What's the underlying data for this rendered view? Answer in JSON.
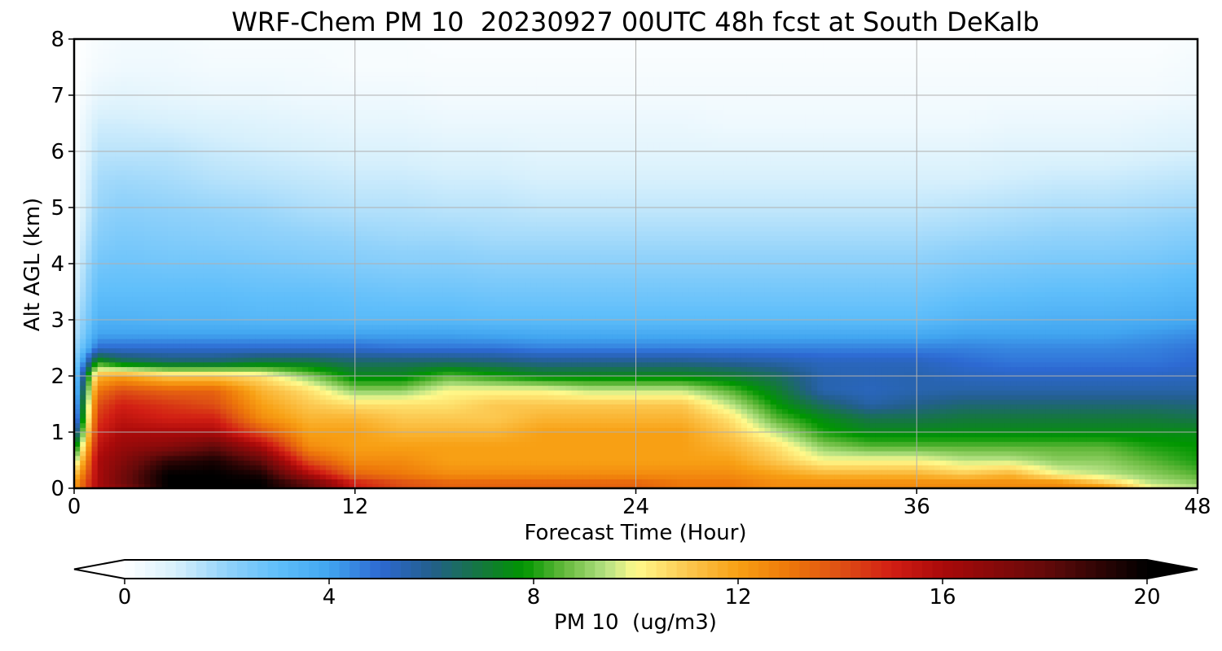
{
  "chart_data": {
    "type": "heatmap",
    "title": "WRF-Chem PM 10  20230927 00UTC 48h fcst at South DeKalb",
    "xlabel": "Forecast Time (Hour)",
    "ylabel": "Alt AGL (km)",
    "xlim": [
      0,
      48
    ],
    "ylim": [
      0,
      8
    ],
    "x_ticks": [
      0,
      12,
      24,
      36,
      48
    ],
    "y_ticks": [
      0,
      1,
      2,
      3,
      4,
      5,
      6,
      7,
      8
    ],
    "grid": true,
    "colorbar": {
      "label": "PM 10  (ug/m3)",
      "ticks": [
        0,
        4,
        8,
        12,
        16,
        20
      ],
      "range": [
        0,
        20
      ],
      "extend": "both",
      "orientation": "horizontal"
    },
    "x": [
      0,
      1,
      2,
      4,
      6,
      8,
      10,
      12,
      14,
      16,
      18,
      20,
      22,
      24,
      26,
      28,
      30,
      32,
      34,
      36,
      38,
      40,
      42,
      44,
      46,
      48
    ],
    "z_levels_km": [
      0,
      0.1,
      0.25,
      0.5,
      0.75,
      1,
      1.25,
      1.5,
      1.75,
      2,
      2.25,
      2.5,
      2.75,
      3,
      3.5,
      4,
      4.5,
      5,
      5.5,
      6,
      6.5,
      7,
      7.5,
      8
    ],
    "pm10_profiles": [
      [
        12,
        12,
        11,
        9,
        7,
        5,
        3.5,
        3,
        2.6,
        2.3,
        2.0,
        1.7,
        1.4,
        1.2,
        0.9,
        0.7,
        0.5,
        0.3,
        0.2,
        0.1,
        0.05,
        0.0,
        0.0,
        0.0
      ],
      [
        16,
        16,
        16,
        16,
        15.5,
        15,
        14.5,
        14,
        13,
        11.5,
        8,
        5,
        4,
        3.5,
        3.0,
        2.6,
        2.2,
        1.9,
        1.7,
        1.4,
        1.1,
        0.6,
        0.3,
        0.2
      ],
      [
        17,
        17.5,
        17.5,
        17,
        16.5,
        16,
        15.5,
        15,
        14,
        12,
        7,
        5,
        4,
        3.5,
        3.0,
        2.7,
        2.4,
        2.1,
        1.8,
        1.4,
        1.1,
        0.7,
        0.4,
        0.3
      ],
      [
        20,
        20,
        20,
        19,
        17,
        16,
        15,
        14.5,
        13.5,
        11,
        6.5,
        5,
        4,
        3.4,
        3.0,
        2.6,
        2.3,
        2.0,
        1.7,
        1.4,
        1.0,
        0.6,
        0.4,
        0.3
      ],
      [
        20,
        20,
        20,
        19.5,
        18,
        16,
        15,
        14,
        13.5,
        11,
        6.5,
        5,
        4,
        3.4,
        3.0,
        2.6,
        2.2,
        1.9,
        1.5,
        1.2,
        0.9,
        0.5,
        0.3,
        0.2
      ],
      [
        20,
        20,
        19.5,
        18,
        16,
        14,
        12.5,
        12,
        11.5,
        10.5,
        7,
        5,
        4,
        3.3,
        2.9,
        2.5,
        2.1,
        1.8,
        1.4,
        1.1,
        0.8,
        0.5,
        0.3,
        0.2
      ],
      [
        18,
        18,
        16,
        14,
        12.5,
        12,
        11.5,
        11,
        10.5,
        9,
        7,
        5,
        4,
        3.3,
        2.9,
        2.4,
        2.0,
        1.6,
        1.3,
        1.0,
        0.7,
        0.4,
        0.3,
        0.2
      ],
      [
        15,
        15,
        13.5,
        12.5,
        12,
        12,
        11.5,
        10.5,
        9,
        7.5,
        6.5,
        5,
        4,
        3.2,
        2.8,
        2.3,
        1.9,
        1.5,
        1.2,
        0.9,
        0.6,
        0.4,
        0.2,
        0.2
      ],
      [
        14,
        14,
        13,
        12.5,
        12,
        11.5,
        11,
        10.5,
        9,
        7.5,
        6.5,
        4.8,
        4,
        3.2,
        2.7,
        2.2,
        1.8,
        1.5,
        1.2,
        0.9,
        0.6,
        0.4,
        0.2,
        0.2
      ],
      [
        13.5,
        13.5,
        12.5,
        12,
        12,
        11.5,
        11,
        10.5,
        10,
        8.5,
        6.5,
        4.8,
        4,
        3.2,
        2.7,
        2.2,
        1.8,
        1.4,
        1.1,
        0.8,
        0.5,
        0.3,
        0.2,
        0.1
      ],
      [
        13.5,
        13.5,
        12.5,
        12,
        12,
        11.5,
        11,
        11,
        10,
        8,
        6.3,
        4.8,
        3.9,
        3.1,
        2.6,
        2.1,
        1.7,
        1.4,
        1.1,
        0.8,
        0.5,
        0.3,
        0.2,
        0.1
      ],
      [
        13.5,
        13.5,
        12.5,
        12,
        12,
        12,
        11.5,
        11,
        10,
        7.5,
        6,
        4.6,
        3.8,
        3.1,
        2.6,
        2.1,
        1.7,
        1.3,
        1.0,
        0.7,
        0.5,
        0.3,
        0.2,
        0.1
      ],
      [
        13.5,
        13.5,
        12.5,
        12,
        12,
        12,
        11.5,
        11,
        9.5,
        7.5,
        6,
        4.6,
        3.8,
        3.1,
        2.6,
        2.1,
        1.7,
        1.3,
        1.0,
        0.7,
        0.5,
        0.3,
        0.2,
        0.1
      ],
      [
        13.5,
        13.5,
        12.5,
        12,
        12,
        12,
        11.5,
        11,
        9.5,
        7.5,
        6,
        4.6,
        3.8,
        3.1,
        2.6,
        2.1,
        1.7,
        1.3,
        1.0,
        0.7,
        0.5,
        0.3,
        0.2,
        0.1
      ],
      [
        13,
        13,
        12.5,
        12,
        12,
        12,
        11.5,
        11,
        9.5,
        7.5,
        6,
        4.6,
        3.8,
        3.1,
        2.6,
        2.1,
        1.7,
        1.3,
        1.0,
        0.7,
        0.5,
        0.3,
        0.2,
        0.1
      ],
      [
        13,
        13,
        12.5,
        12,
        11.5,
        11,
        10.5,
        9.5,
        8.5,
        7.2,
        5.8,
        4.6,
        3.8,
        3.1,
        2.6,
        2.1,
        1.7,
        1.3,
        1.0,
        0.7,
        0.4,
        0.3,
        0.2,
        0.1
      ],
      [
        12.5,
        12.5,
        12,
        11,
        10.5,
        9.5,
        8.5,
        7.8,
        7.2,
        6.6,
        5.6,
        4.6,
        3.8,
        3.1,
        2.6,
        2.1,
        1.7,
        1.3,
        1.0,
        0.7,
        0.4,
        0.3,
        0.2,
        0.1
      ],
      [
        12.5,
        12.5,
        11.5,
        10,
        9,
        8,
        7.5,
        6.5,
        5.5,
        5.5,
        5.3,
        4.6,
        3.8,
        3.1,
        2.6,
        2.1,
        1.7,
        1.3,
        1.0,
        0.7,
        0.4,
        0.3,
        0.2,
        0.1
      ],
      [
        12.5,
        12.5,
        11.5,
        10,
        8.5,
        7.5,
        6.8,
        5.6,
        5.3,
        5.4,
        5.3,
        4.6,
        3.8,
        3.1,
        2.6,
        2.1,
        1.7,
        1.3,
        1.0,
        0.7,
        0.4,
        0.3,
        0.2,
        0.1
      ],
      [
        12.5,
        12.5,
        11.5,
        10,
        8.5,
        7.5,
        6.8,
        6,
        5.5,
        5.5,
        5.3,
        4.6,
        3.8,
        3.1,
        2.6,
        2.1,
        1.7,
        1.3,
        1.0,
        0.7,
        0.4,
        0.3,
        0.2,
        0.1
      ],
      [
        12.5,
        12.5,
        11,
        9.5,
        8.5,
        7.5,
        7,
        6.3,
        5.6,
        5.3,
        5.0,
        4.6,
        4.0,
        3.4,
        2.8,
        2.3,
        1.8,
        1.4,
        1.0,
        0.7,
        0.4,
        0.3,
        0.2,
        0.1
      ],
      [
        12.5,
        12.5,
        11.5,
        9.5,
        8.5,
        7.5,
        7,
        6.3,
        5.6,
        5.2,
        4.8,
        4.5,
        4.0,
        3.5,
        2.9,
        2.4,
        1.9,
        1.5,
        1.1,
        0.8,
        0.5,
        0.3,
        0.2,
        0.1
      ],
      [
        12.5,
        12.5,
        10,
        9,
        8.5,
        7.5,
        7,
        6.3,
        5.6,
        5.2,
        4.8,
        4.5,
        4.0,
        3.6,
        3.0,
        2.5,
        2.0,
        1.6,
        1.2,
        0.8,
        0.5,
        0.3,
        0.2,
        0.1
      ],
      [
        12.5,
        11,
        9.5,
        9,
        8.5,
        7.5,
        7,
        6.3,
        5.6,
        5.2,
        4.8,
        4.5,
        4.0,
        3.6,
        3.0,
        2.5,
        2.0,
        1.6,
        1.2,
        0.8,
        0.5,
        0.3,
        0.2,
        0.1
      ],
      [
        10,
        9.5,
        9,
        8.5,
        8,
        7.5,
        7,
        6.3,
        5.6,
        5.2,
        4.8,
        4.6,
        4.2,
        3.7,
        3.1,
        2.6,
        2.1,
        1.7,
        1.3,
        0.9,
        0.6,
        0.3,
        0.2,
        0.1
      ],
      [
        9.5,
        9,
        8.5,
        8,
        7.8,
        7.5,
        6.8,
        6.2,
        5.6,
        5.3,
        5.0,
        4.8,
        4.4,
        3.9,
        3.3,
        2.8,
        2.3,
        1.8,
        1.4,
        1.0,
        0.7,
        0.4,
        0.3,
        0.2
      ]
    ]
  }
}
